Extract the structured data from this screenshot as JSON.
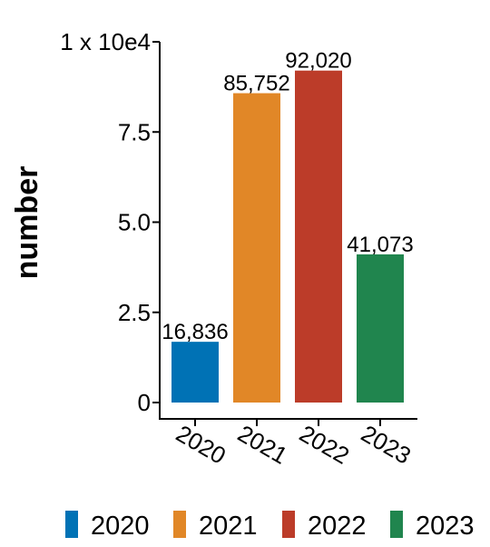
{
  "chart_data": {
    "type": "bar",
    "title": "",
    "xlabel": "",
    "ylabel": "number",
    "categories": [
      "2020",
      "2021",
      "2022",
      "2023"
    ],
    "values": [
      16836,
      85752,
      92020,
      41073
    ],
    "value_labels": [
      "16,836",
      "85,752",
      "92,020",
      "41,073"
    ],
    "colors": [
      "#0072B5",
      "#E18727",
      "#BC3C29",
      "#20854E"
    ],
    "ylim": [
      0,
      100000
    ],
    "yticks": [
      {
        "value": 0,
        "label": "0"
      },
      {
        "value": 25000,
        "label": "2.5"
      },
      {
        "value": 50000,
        "label": "5.0"
      },
      {
        "value": 75000,
        "label": "7.5"
      },
      {
        "value": 100000,
        "label": "1 x 10e4"
      }
    ],
    "grid": false,
    "legend": {
      "placement": "bottom",
      "entries": [
        "2020",
        "2021",
        "2022",
        "2023"
      ]
    }
  }
}
